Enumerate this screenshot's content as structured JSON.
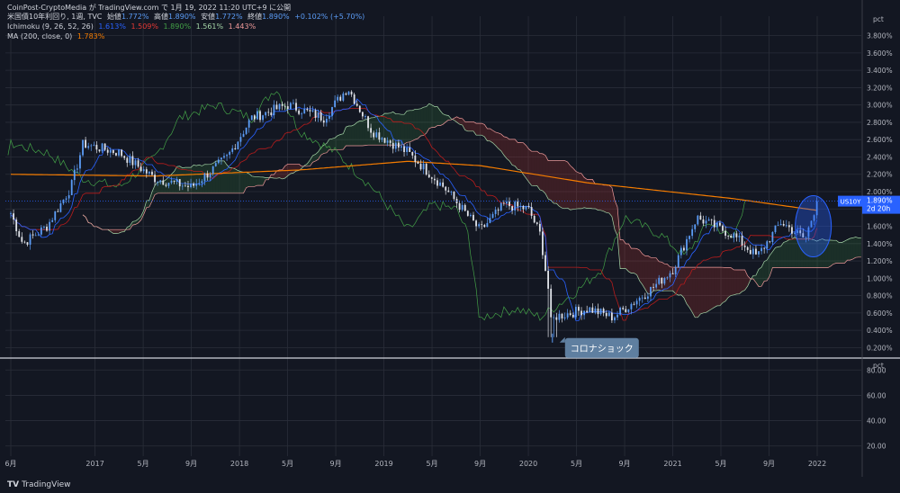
{
  "header": {
    "attribution": "CoinPost-CryptoMedia が TradingView.com で 1月 19, 2022 11:20 UTC+9 に公開",
    "line1_title": "米国債10年利回り, 1週, TVC",
    "line1_open_label": "始値",
    "line1_open": "1.772%",
    "line1_high_label": "高値",
    "line1_high": "1.890%",
    "line1_low_label": "安値",
    "line1_low": "1.772%",
    "line1_close_label": "終値",
    "line1_close": "1.890%",
    "line1_change": "+0.102% (+5.70%)",
    "line2_title": "Ichimoku (9, 26, 52, 26)",
    "line2_v1": "1.613%",
    "line2_v2": "1.509%",
    "line2_v3": "1.890%",
    "line2_v4": "1.561%",
    "line2_v5": "1.443%",
    "line3_title": "MA (200, close, 0)",
    "line3_v1": "1.783%"
  },
  "price_label": {
    "symbol": "US10Y",
    "value": "1.890%",
    "countdown": "2d 20h"
  },
  "annotation": "コロナショック",
  "footer": {
    "logo": "TradingView"
  },
  "colors": {
    "background": "#131722",
    "grid": "#2a2e39",
    "up": "#5b9cf6",
    "down": "#e1e4ea",
    "tenkan": "#2962ff",
    "kijun": "#b71c1c",
    "chikou": "#43a047",
    "spanA": "#a5d6a7",
    "spanB": "#ef9a9a",
    "ma": "#f57c00"
  },
  "chart_data": [
    {
      "type": "line",
      "series_label": "US10Y",
      "unit": "%",
      "axis": "pct",
      "ylim": [
        0.1,
        3.9
      ],
      "yticks": [
        "0.200%",
        "0.400%",
        "0.600%",
        "0.800%",
        "1.000%",
        "1.200%",
        "1.400%",
        "1.600%",
        "1.800%",
        "2.000%",
        "2.200%",
        "2.400%",
        "2.600%",
        "2.800%",
        "3.000%",
        "3.200%",
        "3.400%",
        "3.600%",
        "3.800%"
      ],
      "xticks": [
        "6月",
        "2017",
        "5月",
        "9月",
        "2018",
        "5月",
        "9月",
        "2019",
        "5月",
        "9月",
        "2020",
        "5月",
        "9月",
        "2021",
        "5月",
        "9月",
        "2022"
      ],
      "x_start": "2016-06",
      "x_end": "2022-01",
      "close_anchors": [
        [
          "2016-06",
          1.75
        ],
        [
          "2016-07",
          1.4
        ],
        [
          "2016-09",
          1.6
        ],
        [
          "2016-11",
          2.05
        ],
        [
          "2016-12",
          2.55
        ],
        [
          "2017-03",
          2.45
        ],
        [
          "2017-06",
          2.15
        ],
        [
          "2017-09",
          2.05
        ],
        [
          "2017-12",
          2.4
        ],
        [
          "2018-02",
          2.85
        ],
        [
          "2018-05",
          3.0
        ],
        [
          "2018-08",
          2.85
        ],
        [
          "2018-10",
          3.2
        ],
        [
          "2018-12",
          2.7
        ],
        [
          "2019-03",
          2.45
        ],
        [
          "2019-06",
          2.05
        ],
        [
          "2019-09",
          1.55
        ],
        [
          "2019-11",
          1.85
        ],
        [
          "2020-01",
          1.8
        ],
        [
          "2020-02",
          1.5
        ],
        [
          "2020-03",
          0.55
        ],
        [
          "2020-06",
          0.65
        ],
        [
          "2020-08",
          0.55
        ],
        [
          "2020-11",
          0.85
        ],
        [
          "2021-01",
          1.1
        ],
        [
          "2021-03",
          1.7
        ],
        [
          "2021-06",
          1.5
        ],
        [
          "2021-08",
          1.25
        ],
        [
          "2021-10",
          1.65
        ],
        [
          "2021-12",
          1.45
        ],
        [
          "2022-01",
          1.89
        ]
      ],
      "ma200_anchors": [
        [
          "2016-06",
          2.2
        ],
        [
          "2017-06",
          2.18
        ],
        [
          "2018-06",
          2.25
        ],
        [
          "2019-03",
          2.35
        ],
        [
          "2019-09",
          2.3
        ],
        [
          "2020-06",
          2.1
        ],
        [
          "2021-06",
          1.92
        ],
        [
          "2022-01",
          1.783
        ]
      ],
      "last_close": 1.89,
      "corona_low": 0.32
    },
    {
      "type": "line",
      "axis": "pct",
      "ylim": [
        12,
        88
      ],
      "yticks": [
        "20.00",
        "40.00",
        "60.00",
        "80.00"
      ]
    }
  ]
}
